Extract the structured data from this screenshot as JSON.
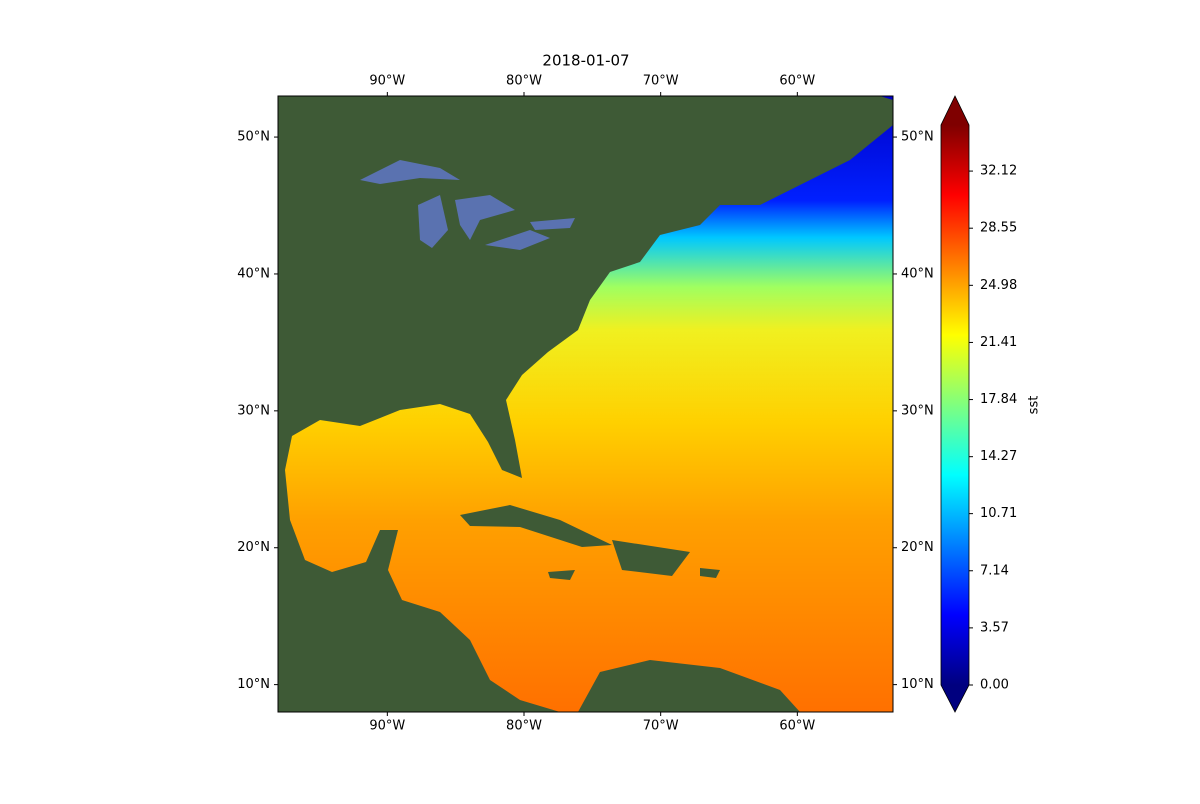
{
  "title": "2018-01-07",
  "map": {
    "xlim": [
      -98,
      -53
    ],
    "ylim": [
      8,
      53
    ],
    "xticks": [
      {
        "value": -90,
        "label": "90°W"
      },
      {
        "value": -80,
        "label": "80°W"
      },
      {
        "value": -70,
        "label": "70°W"
      },
      {
        "value": -60,
        "label": "60°W"
      }
    ],
    "yticks": [
      {
        "value": 10,
        "label": "10°N"
      },
      {
        "value": 20,
        "label": "20°N"
      },
      {
        "value": 30,
        "label": "30°N"
      },
      {
        "value": 40,
        "label": "40°N"
      },
      {
        "value": 50,
        "label": "50°N"
      }
    ]
  },
  "colorbar": {
    "label": "sst",
    "lim": [
      0,
      35
    ],
    "ticks": [
      {
        "value": 0,
        "label": "0.00"
      },
      3.57,
      7.14,
      10.71,
      14.27,
      17.84,
      21.41,
      24.98,
      28.55,
      32.12
    ]
  }
}
